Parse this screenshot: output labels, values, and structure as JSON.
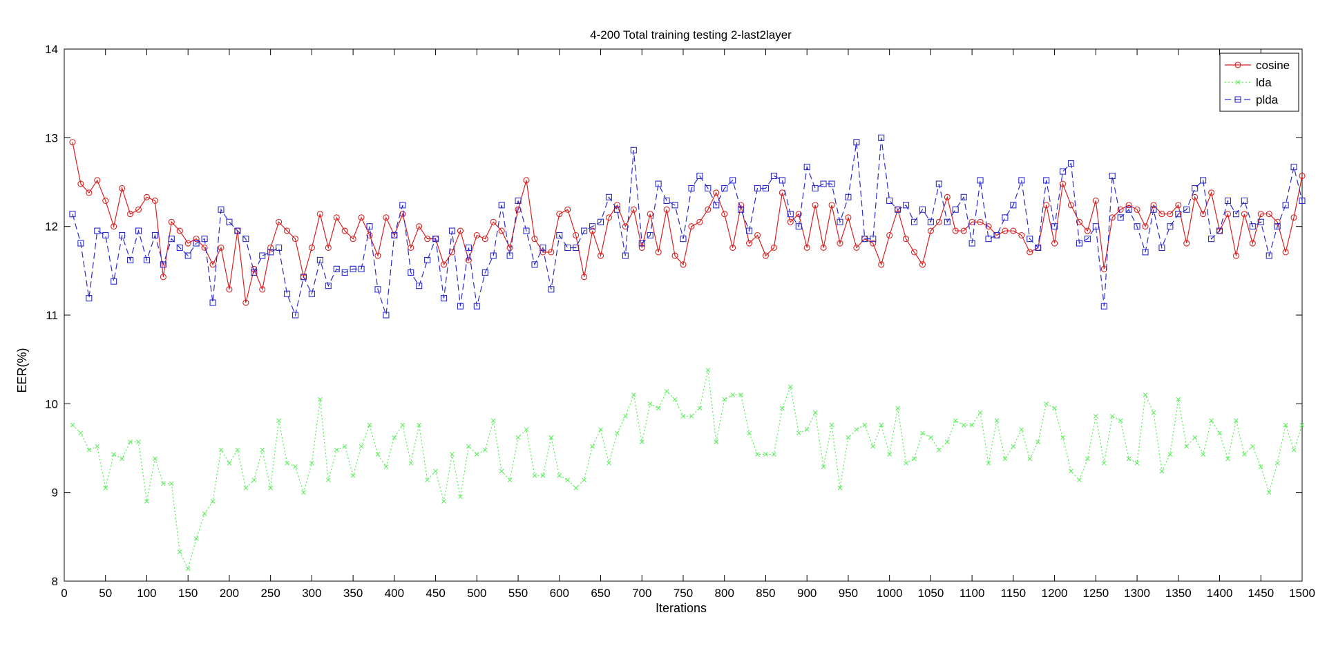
{
  "chart_data": {
    "type": "line",
    "title": "4-200 Total training testing 2-last2layer",
    "xlabel": "Iterations",
    "ylabel": "EER(%)",
    "xlim": [
      0,
      1500
    ],
    "ylim": [
      8,
      14
    ],
    "xticks": [
      0,
      50,
      100,
      150,
      200,
      250,
      300,
      350,
      400,
      450,
      500,
      550,
      600,
      650,
      700,
      750,
      800,
      850,
      900,
      950,
      1000,
      1050,
      1100,
      1150,
      1200,
      1250,
      1300,
      1350,
      1400,
      1450,
      1500
    ],
    "yticks": [
      8,
      9,
      10,
      11,
      12,
      13,
      14
    ],
    "legend_position": "top-right",
    "x": [
      10,
      20,
      30,
      40,
      50,
      60,
      70,
      80,
      90,
      100,
      110,
      120,
      130,
      140,
      150,
      160,
      170,
      180,
      190,
      200,
      210,
      220,
      230,
      240,
      250,
      260,
      270,
      280,
      290,
      300,
      310,
      320,
      330,
      340,
      350,
      360,
      370,
      380,
      390,
      400,
      410,
      420,
      430,
      440,
      450,
      460,
      470,
      480,
      490,
      500,
      510,
      520,
      530,
      540,
      550,
      560,
      570,
      580,
      590,
      600,
      610,
      620,
      630,
      640,
      650,
      660,
      670,
      680,
      690,
      700,
      710,
      720,
      730,
      740,
      750,
      760,
      770,
      780,
      790,
      800,
      810,
      820,
      830,
      840,
      850,
      860,
      870,
      880,
      890,
      900,
      910,
      920,
      930,
      940,
      950,
      960,
      970,
      980,
      990,
      1000,
      1010,
      1020,
      1030,
      1040,
      1050,
      1060,
      1070,
      1080,
      1090,
      1100,
      1110,
      1120,
      1130,
      1140,
      1150,
      1160,
      1170,
      1180,
      1190,
      1200,
      1210,
      1220,
      1230,
      1240,
      1250,
      1260,
      1270,
      1280,
      1290,
      1300,
      1310,
      1320,
      1330,
      1340,
      1350,
      1360,
      1370,
      1380,
      1390,
      1400,
      1410,
      1420,
      1430,
      1440,
      1450,
      1460,
      1470,
      1480,
      1490,
      1500
    ],
    "series": [
      {
        "name": "cosine",
        "color": "#d82020",
        "marker": "circle",
        "linestyle": "solid",
        "values": [
          12.95,
          12.48,
          12.38,
          12.52,
          12.29,
          12.0,
          12.43,
          12.14,
          12.19,
          12.33,
          12.29,
          11.43,
          12.05,
          11.95,
          11.81,
          11.86,
          11.76,
          11.57,
          11.76,
          11.29,
          11.95,
          11.14,
          11.52,
          11.29,
          11.76,
          12.05,
          11.95,
          11.86,
          11.43,
          11.76,
          12.14,
          11.76,
          12.1,
          11.95,
          11.86,
          12.1,
          11.9,
          11.67,
          12.1,
          11.9,
          12.14,
          11.76,
          12.0,
          11.86,
          11.86,
          11.57,
          11.71,
          11.95,
          11.62,
          11.9,
          11.86,
          12.05,
          11.95,
          11.76,
          12.19,
          12.52,
          11.86,
          11.71,
          11.71,
          12.14,
          12.19,
          11.9,
          11.43,
          11.95,
          11.67,
          12.1,
          12.24,
          12.0,
          12.19,
          11.76,
          12.14,
          11.71,
          12.19,
          11.67,
          11.57,
          12.0,
          12.05,
          12.19,
          12.38,
          12.14,
          11.76,
          12.24,
          11.81,
          11.9,
          11.67,
          11.76,
          12.38,
          12.05,
          12.14,
          11.76,
          12.24,
          11.76,
          12.24,
          11.81,
          12.1,
          11.76,
          11.86,
          11.81,
          11.57,
          11.9,
          12.19,
          11.86,
          11.71,
          11.57,
          11.95,
          12.05,
          12.33,
          11.95,
          11.95,
          12.05,
          12.05,
          12.0,
          11.9,
          11.95,
          11.95,
          11.9,
          11.71,
          11.76,
          12.24,
          11.81,
          12.48,
          12.24,
          12.05,
          11.95,
          12.29,
          11.52,
          12.1,
          12.19,
          12.24,
          12.19,
          12.0,
          12.24,
          12.14,
          12.14,
          12.24,
          11.81,
          12.33,
          12.14,
          12.38,
          11.95,
          12.14,
          11.67,
          12.14,
          11.81,
          12.14,
          12.14,
          12.05,
          11.71,
          12.1,
          12.57
        ]
      },
      {
        "name": "lda",
        "color": "#55ee55",
        "marker": "x",
        "linestyle": "dotted",
        "values": [
          9.76,
          9.67,
          9.48,
          9.52,
          9.05,
          9.43,
          9.38,
          9.57,
          9.57,
          8.9,
          9.38,
          9.1,
          9.1,
          8.33,
          8.14,
          8.48,
          8.76,
          8.9,
          9.48,
          9.33,
          9.48,
          9.05,
          9.14,
          9.48,
          9.05,
          9.81,
          9.33,
          9.29,
          9.0,
          9.33,
          10.05,
          9.14,
          9.48,
          9.52,
          9.19,
          9.52,
          9.76,
          9.43,
          9.29,
          9.62,
          9.76,
          9.33,
          9.76,
          9.14,
          9.24,
          8.9,
          9.43,
          8.95,
          9.52,
          9.43,
          9.48,
          9.81,
          9.24,
          9.14,
          9.62,
          9.71,
          9.19,
          9.19,
          9.62,
          9.19,
          9.14,
          9.05,
          9.14,
          9.52,
          9.71,
          9.33,
          9.67,
          9.86,
          10.1,
          9.57,
          10.0,
          9.95,
          10.14,
          10.05,
          9.86,
          9.86,
          9.95,
          10.38,
          9.57,
          10.05,
          10.1,
          10.1,
          9.67,
          9.43,
          9.43,
          9.43,
          9.95,
          10.19,
          9.67,
          9.71,
          9.9,
          9.29,
          9.76,
          9.05,
          9.62,
          9.71,
          9.76,
          9.52,
          9.76,
          9.43,
          9.95,
          9.33,
          9.38,
          9.67,
          9.62,
          9.48,
          9.57,
          9.81,
          9.76,
          9.76,
          9.9,
          9.33,
          9.81,
          9.38,
          9.52,
          9.71,
          9.38,
          9.57,
          10.0,
          9.95,
          9.62,
          9.24,
          9.14,
          9.38,
          9.86,
          9.33,
          9.86,
          9.81,
          9.38,
          9.33,
          10.1,
          9.9,
          9.24,
          9.43,
          10.05,
          9.52,
          9.62,
          9.43,
          9.81,
          9.67,
          9.38,
          9.81,
          9.43,
          9.52,
          9.29,
          9.0,
          9.33,
          9.76,
          9.48,
          9.76
        ]
      },
      {
        "name": "plda",
        "color": "#2a2ad0",
        "marker": "square",
        "linestyle": "dashed",
        "values": [
          12.14,
          11.81,
          11.19,
          11.95,
          11.9,
          11.38,
          11.9,
          11.62,
          11.95,
          11.62,
          11.9,
          11.57,
          11.86,
          11.76,
          11.67,
          11.81,
          11.86,
          11.14,
          12.19,
          12.05,
          11.95,
          11.86,
          11.48,
          11.67,
          11.71,
          11.76,
          11.24,
          11.0,
          11.43,
          11.24,
          11.62,
          11.33,
          11.52,
          11.48,
          11.52,
          11.52,
          12.0,
          11.29,
          11.0,
          11.9,
          12.24,
          11.48,
          11.33,
          11.62,
          11.86,
          11.19,
          11.95,
          11.1,
          11.76,
          11.1,
          11.48,
          11.67,
          12.24,
          11.67,
          12.29,
          11.95,
          11.57,
          11.76,
          11.29,
          11.9,
          11.76,
          11.76,
          11.95,
          12.0,
          12.05,
          12.33,
          12.19,
          11.67,
          12.86,
          11.81,
          11.9,
          12.48,
          12.29,
          12.24,
          11.86,
          12.43,
          12.57,
          12.43,
          12.24,
          12.43,
          12.52,
          12.19,
          11.95,
          12.43,
          12.43,
          12.57,
          12.52,
          12.14,
          12.0,
          12.67,
          12.43,
          12.48,
          12.48,
          12.05,
          12.33,
          12.95,
          11.86,
          11.86,
          13.0,
          12.29,
          12.19,
          12.24,
          12.05,
          12.19,
          12.05,
          12.48,
          12.05,
          12.19,
          12.33,
          11.81,
          12.52,
          11.86,
          11.9,
          12.1,
          12.24,
          12.52,
          11.86,
          11.76,
          12.52,
          12.0,
          12.62,
          12.71,
          11.81,
          11.86,
          12.0,
          11.1,
          12.57,
          12.1,
          12.19,
          12.0,
          11.71,
          12.19,
          11.76,
          12.0,
          12.14,
          12.19,
          12.43,
          12.52,
          11.86,
          11.95,
          12.29,
          12.14,
          12.29,
          12.0,
          12.05,
          11.67,
          12.0,
          12.24,
          12.67,
          12.29
        ]
      }
    ]
  }
}
